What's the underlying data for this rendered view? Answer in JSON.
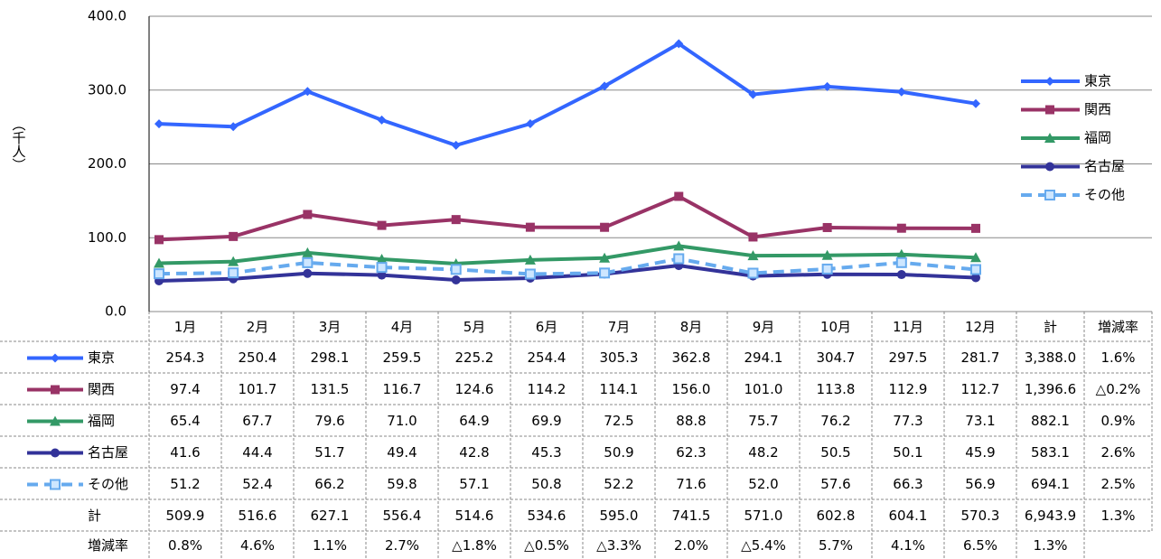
{
  "chart_data": {
    "type": "line",
    "y_label": "（千人）",
    "categories": [
      "1月",
      "2月",
      "3月",
      "4月",
      "5月",
      "6月",
      "7月",
      "8月",
      "9月",
      "10月",
      "11月",
      "12月"
    ],
    "total_header": "計",
    "change_header": "増減率",
    "ylim": [
      0,
      400
    ],
    "yticks": [
      {
        "value": 0,
        "label": "0.0"
      },
      {
        "value": 100,
        "label": "100.0"
      },
      {
        "value": 200,
        "label": "200.0"
      },
      {
        "value": 300,
        "label": "300.0"
      },
      {
        "value": 400,
        "label": "400.0"
      }
    ],
    "grid": true,
    "legend": "right",
    "series": [
      {
        "name": "東京",
        "color": "#3366ff",
        "marker": "diamond",
        "dashed": false,
        "values": [
          254.3,
          250.4,
          298.1,
          259.5,
          225.2,
          254.4,
          305.3,
          362.8,
          294.1,
          304.7,
          297.5,
          281.7
        ],
        "value_labels": [
          "254.3",
          "250.4",
          "298.1",
          "259.5",
          "225.2",
          "254.4",
          "305.3",
          "362.8",
          "294.1",
          "304.7",
          "297.5",
          "281.7"
        ],
        "total": "3,388.0",
        "change": "1.6%"
      },
      {
        "name": "関西",
        "color": "#993366",
        "marker": "square",
        "dashed": false,
        "values": [
          97.4,
          101.7,
          131.5,
          116.7,
          124.6,
          114.2,
          114.1,
          156.0,
          101.0,
          113.8,
          112.9,
          112.7
        ],
        "value_labels": [
          "97.4",
          "101.7",
          "131.5",
          "116.7",
          "124.6",
          "114.2",
          "114.1",
          "156.0",
          "101.0",
          "113.8",
          "112.9",
          "112.7"
        ],
        "total": "1,396.6",
        "change": "△0.2%"
      },
      {
        "name": "福岡",
        "color": "#339966",
        "marker": "triangle",
        "dashed": false,
        "values": [
          65.4,
          67.7,
          79.6,
          71.0,
          64.9,
          69.9,
          72.5,
          88.8,
          75.7,
          76.2,
          77.3,
          73.1
        ],
        "value_labels": [
          "65.4",
          "67.7",
          "79.6",
          "71.0",
          "64.9",
          "69.9",
          "72.5",
          "88.8",
          "75.7",
          "76.2",
          "77.3",
          "73.1"
        ],
        "total": "882.1",
        "change": "0.9%"
      },
      {
        "name": "名古屋",
        "color": "#333399",
        "marker": "circle",
        "dashed": false,
        "values": [
          41.6,
          44.4,
          51.7,
          49.4,
          42.8,
          45.3,
          50.9,
          62.3,
          48.2,
          50.5,
          50.1,
          45.9
        ],
        "value_labels": [
          "41.6",
          "44.4",
          "51.7",
          "49.4",
          "42.8",
          "45.3",
          "50.9",
          "62.3",
          "48.2",
          "50.5",
          "50.1",
          "45.9"
        ],
        "total": "583.1",
        "change": "2.6%"
      },
      {
        "name": "その他",
        "color": "#66aaee",
        "marker": "square-open",
        "dashed": true,
        "values": [
          51.2,
          52.4,
          66.2,
          59.8,
          57.1,
          50.8,
          52.2,
          71.6,
          52.0,
          57.6,
          66.3,
          56.9
        ],
        "value_labels": [
          "51.2",
          "52.4",
          "66.2",
          "59.8",
          "57.1",
          "50.8",
          "52.2",
          "71.6",
          "52.0",
          "57.6",
          "66.3",
          "56.9"
        ],
        "total": "694.1",
        "change": "2.5%"
      }
    ],
    "total_row": {
      "name": "計",
      "cells": [
        "509.9",
        "516.6",
        "627.1",
        "556.4",
        "514.6",
        "534.6",
        "595.0",
        "741.5",
        "571.0",
        "602.8",
        "604.1",
        "570.3",
        "6,943.9",
        "1.3%"
      ]
    },
    "change_row": {
      "name": "増減率",
      "cells": [
        "0.8%",
        "4.6%",
        "1.1%",
        "2.7%",
        "△1.8%",
        "△0.5%",
        "△3.3%",
        "2.0%",
        "△5.4%",
        "5.7%",
        "4.1%",
        "6.5%",
        "1.3%"
      ]
    }
  }
}
